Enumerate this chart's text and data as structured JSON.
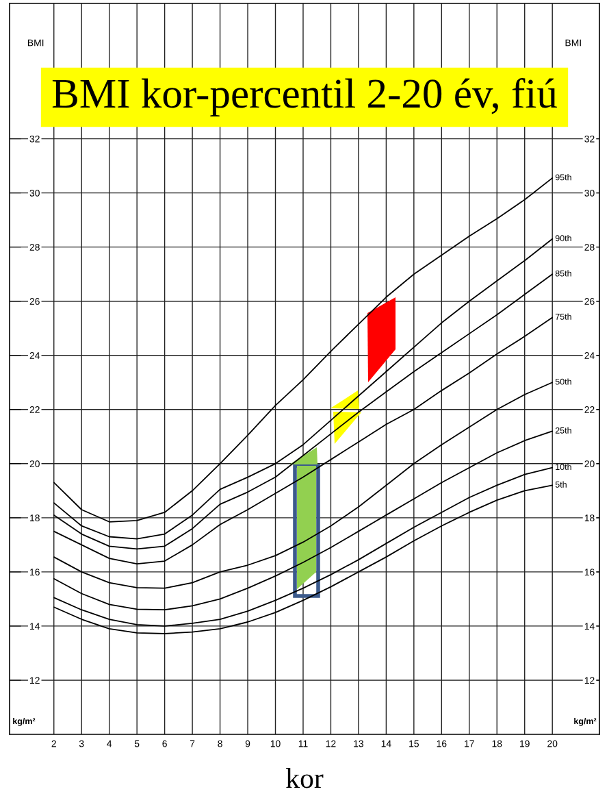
{
  "chart_data": {
    "type": "line",
    "title": "BMI kor-percentil 2-20 év, fiú",
    "xlabel": "kor",
    "ylabel": "BMI",
    "y2label": "BMI",
    "annotations": [
      "kg/m²",
      "kg/m²"
    ],
    "x": [
      2,
      3,
      4,
      5,
      6,
      7,
      8,
      9,
      10,
      11,
      12,
      13,
      14,
      15,
      16,
      17,
      18,
      19,
      20
    ],
    "series": [
      {
        "name": "95th",
        "color": "#000000",
        "values": [
          19.3,
          18.3,
          17.85,
          17.9,
          18.2,
          19.0,
          20.0,
          21.05,
          22.15,
          23.1,
          24.15,
          25.15,
          26.15,
          27.0,
          27.7,
          28.4,
          29.05,
          29.75,
          30.55
        ]
      },
      {
        "name": "90th",
        "color": "#000000",
        "values": [
          18.55,
          17.7,
          17.3,
          17.22,
          17.4,
          18.1,
          19.05,
          19.5,
          20.0,
          20.7,
          21.6,
          22.5,
          23.4,
          24.3,
          25.2,
          26.0,
          26.75,
          27.5,
          28.3
        ]
      },
      {
        "name": "85th",
        "color": "#000000",
        "values": [
          18.1,
          17.4,
          16.95,
          16.85,
          16.95,
          17.6,
          18.5,
          18.95,
          19.5,
          20.3,
          21.1,
          21.9,
          22.65,
          23.4,
          24.1,
          24.8,
          25.5,
          26.25,
          27.0
        ]
      },
      {
        "name": "75th",
        "color": "#000000",
        "values": [
          17.5,
          17.0,
          16.5,
          16.3,
          16.4,
          17.0,
          17.75,
          18.3,
          18.9,
          19.5,
          20.15,
          20.8,
          21.45,
          22.0,
          22.7,
          23.35,
          24.05,
          24.7,
          25.4
        ]
      },
      {
        "name": "50th",
        "color": "#000000",
        "values": [
          16.55,
          16.0,
          15.6,
          15.42,
          15.4,
          15.6,
          16.0,
          16.25,
          16.6,
          17.1,
          17.7,
          18.4,
          19.2,
          20.0,
          20.7,
          21.35,
          22.0,
          22.55,
          23.0
        ]
      },
      {
        "name": "25th",
        "color": "#000000",
        "values": [
          15.75,
          15.2,
          14.8,
          14.62,
          14.6,
          14.75,
          15.0,
          15.4,
          15.85,
          16.35,
          16.9,
          17.5,
          18.1,
          18.7,
          19.3,
          19.85,
          20.4,
          20.85,
          21.2
        ]
      },
      {
        "name": "10th",
        "color": "#000000",
        "values": [
          15.05,
          14.6,
          14.25,
          14.05,
          14.0,
          14.1,
          14.25,
          14.55,
          14.95,
          15.4,
          15.9,
          16.45,
          17.05,
          17.65,
          18.2,
          18.75,
          19.2,
          19.6,
          19.85
        ]
      },
      {
        "name": "5th",
        "color": "#000000",
        "values": [
          14.7,
          14.25,
          13.9,
          13.75,
          13.72,
          13.78,
          13.9,
          14.15,
          14.5,
          14.95,
          15.45,
          16.0,
          16.55,
          17.15,
          17.7,
          18.2,
          18.65,
          19.0,
          19.2
        ]
      }
    ],
    "xlim": [
      0.4,
      21.7
    ],
    "ylim": [
      10,
      37
    ],
    "xticks": [
      2,
      3,
      4,
      5,
      6,
      7,
      8,
      9,
      10,
      11,
      12,
      13,
      14,
      15,
      16,
      17,
      18,
      19,
      20
    ],
    "yticks": [
      12,
      14,
      16,
      18,
      20,
      22,
      24,
      26,
      28,
      30,
      32
    ],
    "y2lim": [
      10,
      37
    ],
    "y2ticks": [
      12,
      14,
      16,
      18,
      20,
      22,
      24,
      26,
      28,
      30,
      32
    ],
    "grid": true
  }
}
